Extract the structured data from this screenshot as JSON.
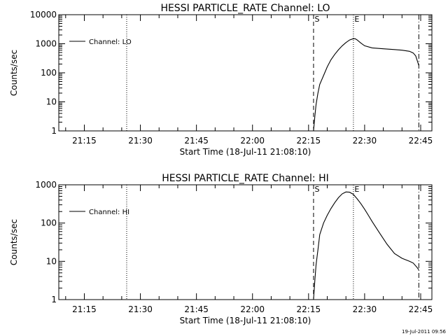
{
  "chart_data": [
    {
      "type": "line",
      "title": "HESSI PARTICLE_RATE Channel: LO",
      "xlabel": "Start Time (18-Jul-11 21:08:10)",
      "ylabel": "Counts/sec",
      "xlim": [
        "21:08:10",
        "22:48:00"
      ],
      "x_ticks": [
        "21:15",
        "21:30",
        "21:45",
        "22:00",
        "22:15",
        "22:30",
        "22:45"
      ],
      "y_scale": "log",
      "ylim": [
        1,
        10000
      ],
      "y_ticks": [
        "1",
        "10",
        "100",
        "1000",
        "10000"
      ],
      "legend": {
        "label": "Channel: LO",
        "position": "top-left"
      },
      "markers": [
        {
          "time": "21:26:20",
          "style": "dotted",
          "label": ""
        },
        {
          "time": "22:16:20",
          "style": "dashed",
          "label": "S"
        },
        {
          "time": "22:27:00",
          "style": "dotted",
          "label": "E"
        },
        {
          "time": "22:44:30",
          "style": "dashdot",
          "label": ""
        }
      ],
      "series": [
        {
          "name": "Channel: LO",
          "x": [
            "22:16:20",
            "22:16:40",
            "22:17:00",
            "22:17:30",
            "22:18:00",
            "22:19:00",
            "22:20:00",
            "22:21:00",
            "22:22:00",
            "22:23:00",
            "22:24:00",
            "22:25:00",
            "22:26:00",
            "22:27:00",
            "22:27:30",
            "22:28:00",
            "22:29:00",
            "22:30:00",
            "22:32:00",
            "22:35:00",
            "22:38:00",
            "22:40:00",
            "22:42:00",
            "22:43:00",
            "22:43:40",
            "22:44:30"
          ],
          "y": [
            1,
            3,
            8,
            20,
            40,
            80,
            160,
            280,
            430,
            620,
            850,
            1100,
            1350,
            1500,
            1480,
            1350,
            1050,
            850,
            720,
            670,
            630,
            600,
            550,
            480,
            380,
            180
          ]
        }
      ]
    },
    {
      "type": "line",
      "title": "HESSI PARTICLE_RATE Channel: HI",
      "xlabel": "Start Time (18-Jul-11 21:08:10)",
      "ylabel": "Counts/sec",
      "xlim": [
        "21:08:10",
        "22:48:00"
      ],
      "x_ticks": [
        "21:15",
        "21:30",
        "21:45",
        "22:00",
        "22:15",
        "22:30",
        "22:45"
      ],
      "y_scale": "log",
      "ylim": [
        1,
        1000
      ],
      "y_ticks": [
        "1",
        "10",
        "100",
        "1000"
      ],
      "legend": {
        "label": "Channel: HI",
        "position": "top-left"
      },
      "markers": [
        {
          "time": "21:26:20",
          "style": "dotted",
          "label": ""
        },
        {
          "time": "22:16:20",
          "style": "dashed",
          "label": "S"
        },
        {
          "time": "22:27:00",
          "style": "dotted",
          "label": "E"
        },
        {
          "time": "22:44:30",
          "style": "dashdot",
          "label": ""
        }
      ],
      "series": [
        {
          "name": "Channel: HI",
          "x": [
            "22:16:20",
            "22:16:40",
            "22:17:00",
            "22:17:30",
            "22:18:00",
            "22:19:00",
            "22:20:00",
            "22:21:00",
            "22:22:00",
            "22:23:00",
            "22:24:00",
            "22:25:00",
            "22:26:00",
            "22:27:00",
            "22:28:00",
            "22:29:00",
            "22:30:00",
            "22:31:00",
            "22:32:00",
            "22:34:00",
            "22:36:00",
            "22:38:00",
            "22:40:00",
            "22:41:00",
            "22:42:00",
            "22:43:00",
            "22:44:00",
            "22:44:30"
          ],
          "y": [
            1,
            3,
            8,
            20,
            50,
            100,
            160,
            240,
            340,
            460,
            580,
            650,
            640,
            560,
            430,
            320,
            230,
            160,
            110,
            55,
            28,
            16,
            12,
            11,
            10,
            9,
            7,
            6
          ]
        }
      ]
    }
  ],
  "footer": {
    "timestamp": "19-Jul-2011 09:56"
  }
}
